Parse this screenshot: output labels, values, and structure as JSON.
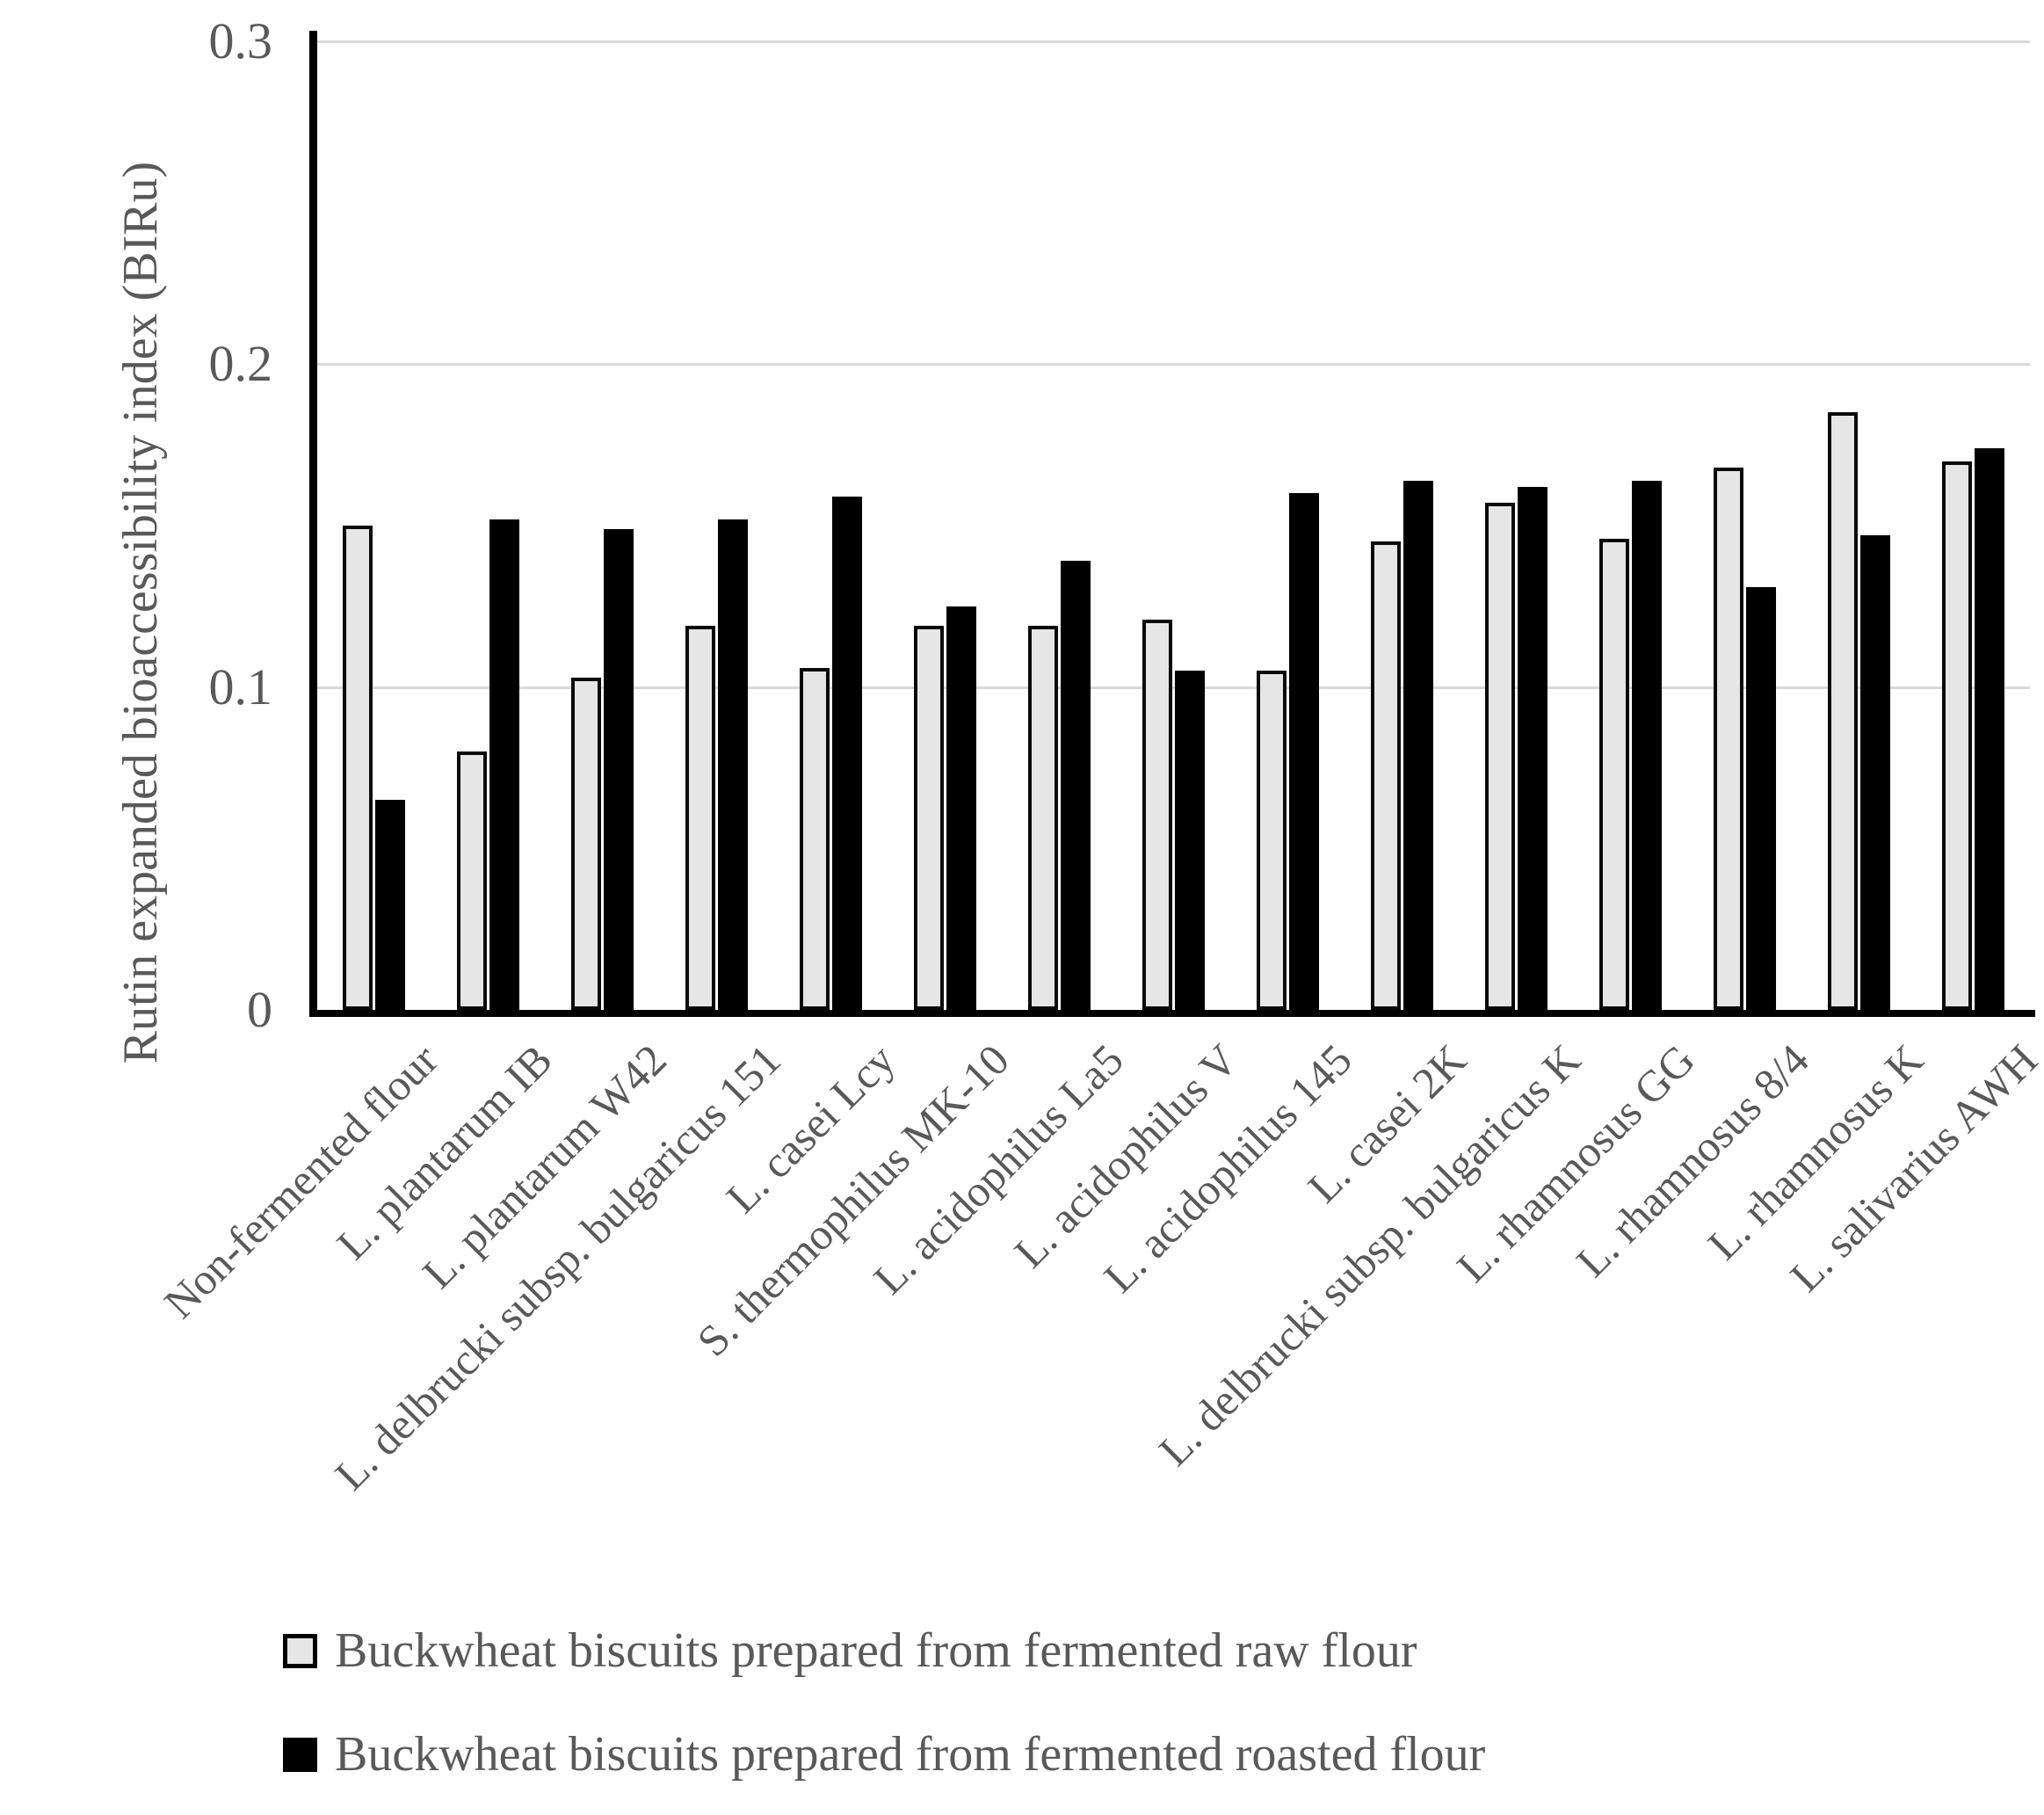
{
  "chart_data": {
    "type": "bar",
    "title": "",
    "ylabel": "Rutin expanded bioaccessibility index (BIRu)",
    "xlabel": "",
    "ylim": [
      0,
      0.3
    ],
    "y_ticks": [
      0,
      0.1,
      0.2,
      0.3
    ],
    "y_tick_labels": [
      "0",
      "0.1",
      "0.2",
      "0.3"
    ],
    "grid": "horizontal-gridlines-on",
    "legend_position": "bottom-left",
    "categories": [
      "Non-fermented flour",
      "L. plantarum IB",
      "L. plantarum W42",
      "L. delbrucki subsp. bulgaricus 151",
      "L. casei Lcy",
      "S. thermophilus MK-10",
      "L. acidophilus La5",
      "L. acidophilus V",
      "L. acidophilus 145",
      "L. casei 2K",
      "L. delbrucki subsp. bulgaricus K",
      "L. rhamnosus GG",
      "L. rhamnosus 8/4",
      "L. rhamnosus K",
      "L. salivarius AWH"
    ],
    "series": [
      {
        "name": "Buckwheat biscuits prepared from fermented raw flour",
        "color": "#e6e6e6",
        "values": [
          0.15,
          0.08,
          0.103,
          0.119,
          0.106,
          0.119,
          0.119,
          0.121,
          0.105,
          0.145,
          0.157,
          0.146,
          0.168,
          0.185,
          0.17
        ]
      },
      {
        "name": "Buckwheat biscuits prepared from fermented roasted flour",
        "color": "#000000",
        "values": [
          0.065,
          0.152,
          0.149,
          0.152,
          0.159,
          0.125,
          0.139,
          0.105,
          0.16,
          0.164,
          0.162,
          0.164,
          0.131,
          0.147,
          0.174
        ]
      }
    ]
  }
}
